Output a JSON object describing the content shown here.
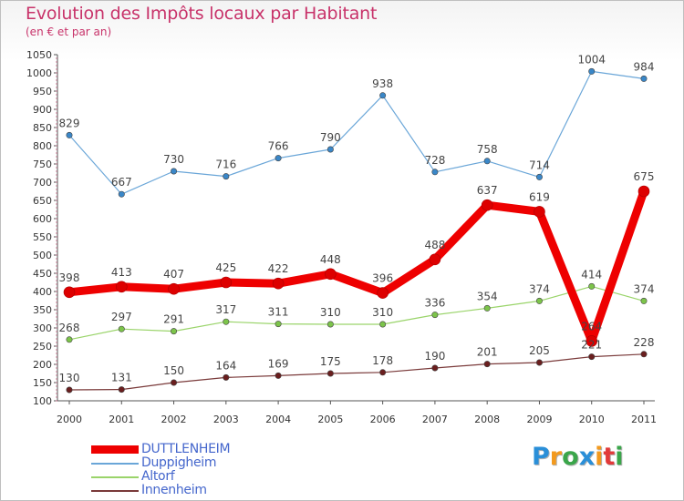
{
  "title": "Evolution des Impôts locaux par Habitant",
  "subtitle": "(en € et par an)",
  "logo": {
    "letters": [
      {
        "ch": "P",
        "color": "#2a8fd8"
      },
      {
        "ch": "r",
        "color": "#f39a1e"
      },
      {
        "ch": "o",
        "color": "#3aa64a"
      },
      {
        "ch": "x",
        "color": "#2a8fd8"
      },
      {
        "ch": "i",
        "color": "#f39a1e"
      },
      {
        "ch": "t",
        "color": "#e23a3a"
      },
      {
        "ch": "i",
        "color": "#3aa64a"
      }
    ]
  },
  "chart_data": {
    "type": "line",
    "title": "Evolution des Impôts locaux par Habitant",
    "subtitle": "(en € et par an)",
    "xlabel": "",
    "ylabel": "",
    "x": [
      "2000",
      "2001",
      "2002",
      "2003",
      "2004",
      "2005",
      "2006",
      "2007",
      "2008",
      "2009",
      "2010",
      "2011"
    ],
    "ylim": [
      100,
      1050
    ],
    "ytick_step": 50,
    "grid": false,
    "legend_position": "bottom-left",
    "series": [
      {
        "name": "DUTTLENHEIM",
        "color": "#ee0000",
        "width": 9,
        "marker": 6,
        "markerColor": "#dd0000",
        "values": [
          398,
          413,
          407,
          425,
          422,
          448,
          396,
          488,
          637,
          619,
          264,
          675
        ],
        "labels": [
          "398",
          "413",
          "407",
          "425",
          "422",
          "448",
          "396",
          "488",
          "637",
          "619",
          "264",
          "675"
        ]
      },
      {
        "name": "Duppigheim",
        "color": "#6aa6d8",
        "width": 1.2,
        "marker": 3.2,
        "markerColor": "#3a87c8",
        "values": [
          829,
          667,
          730,
          716,
          766,
          790,
          938,
          728,
          758,
          714,
          1004,
          984
        ],
        "labels": [
          "829",
          "667",
          "730",
          "716",
          "766",
          "790",
          "938",
          "728",
          "758",
          "714",
          "1004",
          "984"
        ]
      },
      {
        "name": "Altorf",
        "color": "#9ad46a",
        "width": 1.2,
        "marker": 3.2,
        "markerColor": "#7cc44a",
        "values": [
          268,
          297,
          291,
          317,
          311,
          310,
          310,
          336,
          354,
          374,
          414,
          374
        ],
        "labels": [
          "268",
          "297",
          "291",
          "317",
          "311",
          "310",
          "310",
          "336",
          "354",
          "374",
          "414",
          "374"
        ]
      },
      {
        "name": "Innenheim",
        "color": "#7a3a3a",
        "width": 1.2,
        "marker": 3.2,
        "markerColor": "#6a1e1e",
        "values": [
          130,
          131,
          150,
          164,
          169,
          175,
          178,
          190,
          201,
          205,
          221,
          228
        ],
        "labels": [
          "130",
          "131",
          "150",
          "164",
          "169",
          "175",
          "178",
          "190",
          "201",
          "205",
          "221",
          "228"
        ]
      }
    ]
  }
}
